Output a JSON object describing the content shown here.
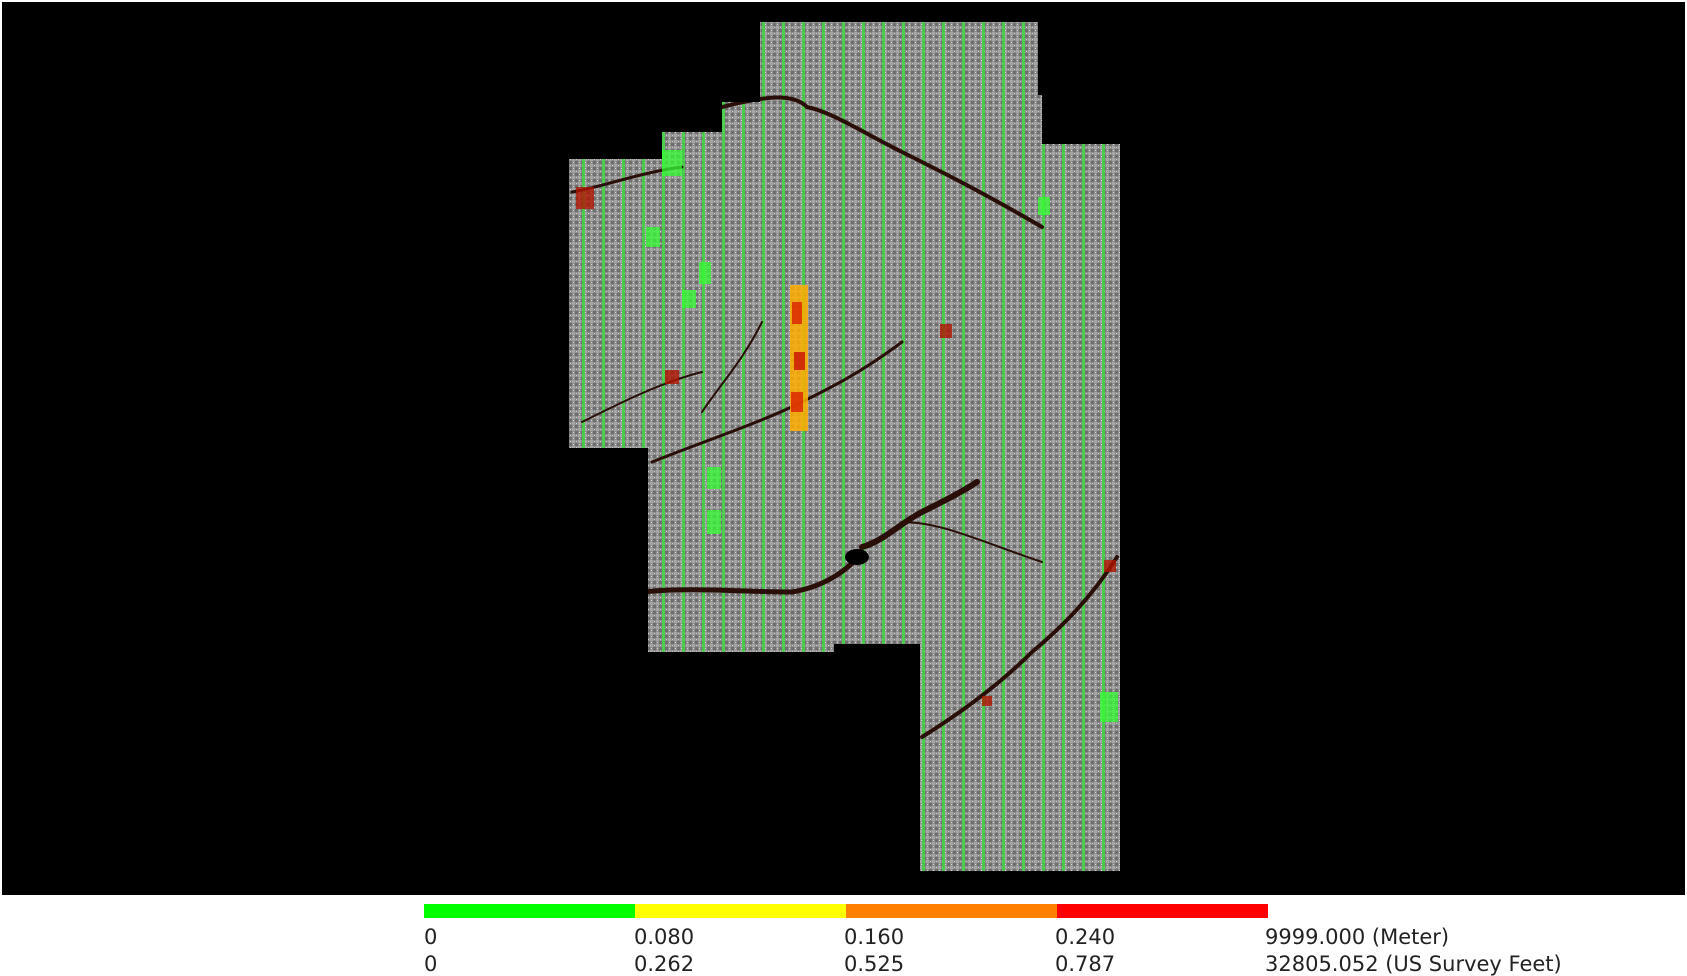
{
  "map": {
    "background_color": "#000000",
    "legend_colors": [
      "#00ff00",
      "#ffff00",
      "#ff8000",
      "#ff0000"
    ]
  },
  "legend": {
    "meter_labels": [
      "0",
      "0.080",
      "0.160",
      "0.240",
      "9999.000 (Meter)"
    ],
    "feet_labels": [
      "0",
      "0.262",
      "0.525",
      "0.787",
      "32805.052 (US Survey Feet)"
    ]
  }
}
